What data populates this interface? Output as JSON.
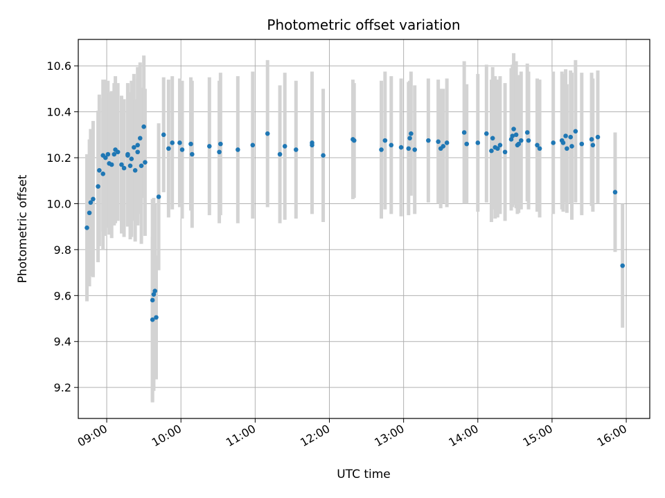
{
  "chart_data": {
    "type": "scatter",
    "title": "Photometric offset variation",
    "xlabel": "UTC time",
    "ylabel": "Photometric offset",
    "xlim": [
      "08:37",
      "16:19"
    ],
    "ylim": [
      9.065,
      10.715
    ],
    "grid": true,
    "xticks": [
      "09:00",
      "10:00",
      "11:00",
      "12:00",
      "13:00",
      "14:00",
      "15:00",
      "16:00"
    ],
    "yticks": [
      9.2,
      9.4,
      9.6,
      9.8,
      10.0,
      10.2,
      10.4,
      10.6
    ],
    "colors": {
      "point": "#1f77b4",
      "errorbar": "#d3d3d3",
      "grid": "#b0b0b0"
    },
    "series": [
      {
        "x": [
          "08:44",
          "08:46",
          "08:47",
          "08:49",
          "08:53",
          "08:54",
          "08:57",
          "08:57",
          "08:59",
          "09:01",
          "09:02",
          "09:04",
          "09:06",
          "09:07",
          "09:09",
          "09:12",
          "09:14",
          "09:17",
          "09:17",
          "09:19",
          "09:20",
          "09:22",
          "09:23",
          "09:25",
          "09:25",
          "09:27",
          "09:28",
          "09:30",
          "09:31",
          "09:37",
          "09:37",
          "09:38",
          "09:39",
          "09:40",
          "09:42",
          "09:46",
          "09:50",
          "09:53",
          "09:59",
          "10:01",
          "10:08",
          "10:09",
          "10:23",
          "10:31",
          "10:32",
          "10:46",
          "10:58",
          "11:10",
          "11:20",
          "11:24",
          "11:33",
          "11:46",
          "11:46",
          "11:55",
          "12:19",
          "12:20",
          "12:42",
          "12:45",
          "12:50",
          "12:58",
          "13:04",
          "13:05",
          "13:06",
          "13:09",
          "13:20",
          "13:28",
          "13:30",
          "13:32",
          "13:35",
          "13:49",
          "13:51",
          "14:00",
          "14:07",
          "14:11",
          "14:12",
          "14:14",
          "14:16",
          "14:18",
          "14:22",
          "14:27",
          "14:28",
          "14:29",
          "14:31",
          "14:32",
          "14:33",
          "14:35",
          "14:40",
          "14:41",
          "14:48",
          "14:50",
          "15:01",
          "15:08",
          "15:09",
          "15:11",
          "15:12",
          "15:15",
          "15:16",
          "15:19",
          "15:24",
          "15:32",
          "15:33",
          "15:37",
          "15:51",
          "15:57"
        ],
        "y": [
          9.895,
          9.96,
          10.005,
          10.02,
          10.075,
          10.145,
          10.13,
          10.21,
          10.2,
          10.215,
          10.175,
          10.17,
          10.215,
          10.235,
          10.225,
          10.17,
          10.155,
          10.21,
          10.215,
          10.165,
          10.195,
          10.245,
          10.145,
          10.225,
          10.255,
          10.285,
          10.165,
          10.335,
          10.18,
          9.495,
          9.58,
          9.605,
          9.62,
          9.505,
          10.03,
          10.3,
          10.24,
          10.265,
          10.265,
          10.235,
          10.26,
          10.215,
          10.25,
          10.225,
          10.26,
          10.235,
          10.255,
          10.305,
          10.215,
          10.25,
          10.235,
          10.255,
          10.265,
          10.21,
          10.28,
          10.275,
          10.235,
          10.275,
          10.255,
          10.245,
          10.24,
          10.285,
          10.305,
          10.235,
          10.275,
          10.27,
          10.24,
          10.25,
          10.265,
          10.31,
          10.26,
          10.265,
          10.305,
          10.23,
          10.285,
          10.245,
          10.24,
          10.255,
          10.225,
          10.28,
          10.295,
          10.325,
          10.3,
          10.255,
          10.26,
          10.275,
          10.31,
          10.275,
          10.255,
          10.24,
          10.265,
          10.275,
          10.265,
          10.295,
          10.24,
          10.29,
          10.25,
          10.315,
          10.26,
          10.28,
          10.255,
          10.29,
          10.05,
          9.73
        ],
        "yerr": [
          0.32,
          0.32,
          0.32,
          0.34,
          0.33,
          0.33,
          0.33,
          0.33,
          0.34,
          0.32,
          0.31,
          0.32,
          0.31,
          0.32,
          0.3,
          0.3,
          0.3,
          0.31,
          0.31,
          0.32,
          0.34,
          0.32,
          0.31,
          0.32,
          0.34,
          0.33,
          0.34,
          0.31,
          0.32,
          0.36,
          0.44,
          0.42,
          0.38,
          0.27,
          0.32,
          0.25,
          0.3,
          0.29,
          0.28,
          0.3,
          0.29,
          0.32,
          0.3,
          0.31,
          0.31,
          0.32,
          0.32,
          0.32,
          0.3,
          0.32,
          0.3,
          0.29,
          0.31,
          0.29,
          0.26,
          0.25,
          0.3,
          0.3,
          0.3,
          0.3,
          0.29,
          0.25,
          0.27,
          0.28,
          0.27,
          0.27,
          0.26,
          0.25,
          0.28,
          0.31,
          0.26,
          0.3,
          0.3,
          0.31,
          0.31,
          0.31,
          0.3,
          0.3,
          0.3,
          0.31,
          0.31,
          0.33,
          0.32,
          0.3,
          0.3,
          0.3,
          0.3,
          0.3,
          0.29,
          0.3,
          0.31,
          0.3,
          0.3,
          0.29,
          0.28,
          0.29,
          0.32,
          0.31,
          0.31,
          0.29,
          0.29,
          0.29,
          0.26,
          0.27
        ]
      }
    ]
  }
}
